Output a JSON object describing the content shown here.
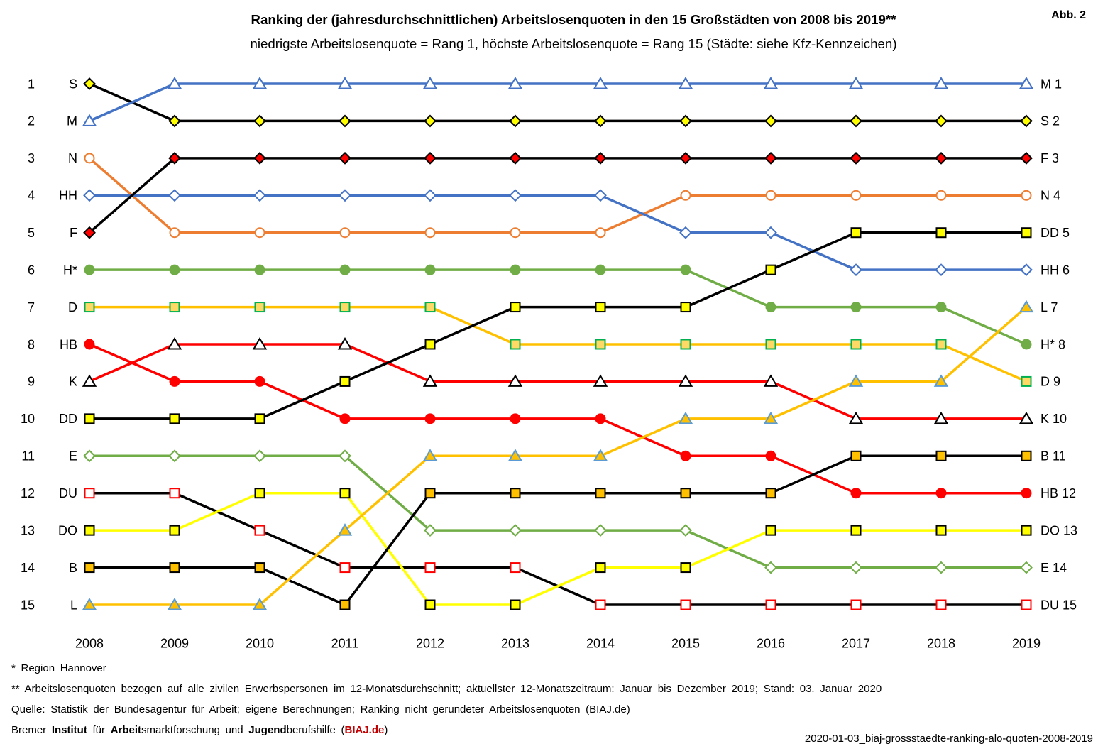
{
  "figure_label": "Abb. 2",
  "chart_data": {
    "type": "line",
    "title": "Ranking der (jahresdurchschnittlichen) Arbeitslosenquoten in den 15 Großstädten von 2008 bis 2019**",
    "subtitle": "niedrigste Arbeitslosenquote = Rang 1, höchste Arbeitslosenquote = Rang 15 (Städte: siehe Kfz-Kennzeichen)",
    "x": [
      2008,
      2009,
      2010,
      2011,
      2012,
      2013,
      2014,
      2015,
      2016,
      2017,
      2018,
      2019
    ],
    "y_ticks": [
      1,
      2,
      3,
      4,
      5,
      6,
      7,
      8,
      9,
      10,
      11,
      12,
      13,
      14,
      15
    ],
    "ylim": [
      1,
      15
    ],
    "y_axis_reversed": true,
    "grid": false,
    "series": [
      {
        "name": "S",
        "values": [
          1,
          2,
          2,
          2,
          2,
          2,
          2,
          2,
          2,
          2,
          2,
          2
        ],
        "line_color": "#000000",
        "marker": "diamond",
        "marker_fill": "#FFFF00",
        "marker_stroke": "#000000"
      },
      {
        "name": "M",
        "values": [
          2,
          1,
          1,
          1,
          1,
          1,
          1,
          1,
          1,
          1,
          1,
          1
        ],
        "line_color": "#4472C4",
        "marker": "triangle",
        "marker_fill": "#FFFFFF",
        "marker_stroke": "#4472C4"
      },
      {
        "name": "N",
        "values": [
          3,
          5,
          5,
          5,
          5,
          5,
          5,
          4,
          4,
          4,
          4,
          4
        ],
        "line_color": "#ED7D31",
        "marker": "circle",
        "marker_fill": "#FFFFFF",
        "marker_stroke": "#ED7D31"
      },
      {
        "name": "HH",
        "values": [
          4,
          4,
          4,
          4,
          4,
          4,
          4,
          5,
          5,
          6,
          6,
          6
        ],
        "line_color": "#4472C4",
        "marker": "diamond",
        "marker_fill": "#FFFFFF",
        "marker_stroke": "#4472C4"
      },
      {
        "name": "F",
        "values": [
          5,
          3,
          3,
          3,
          3,
          3,
          3,
          3,
          3,
          3,
          3,
          3
        ],
        "line_color": "#000000",
        "marker": "diamond",
        "marker_fill": "#FF0000",
        "marker_stroke": "#000000"
      },
      {
        "name": "H*",
        "values": [
          6,
          6,
          6,
          6,
          6,
          6,
          6,
          6,
          7,
          7,
          7,
          8
        ],
        "line_color": "#70AD47",
        "marker": "circle",
        "marker_fill": "#70AD47",
        "marker_stroke": "#70AD47"
      },
      {
        "name": "D",
        "values": [
          7,
          7,
          7,
          7,
          7,
          8,
          8,
          8,
          8,
          8,
          8,
          9
        ],
        "line_color": "#FFC000",
        "marker": "square",
        "marker_fill": "#FFD966",
        "marker_stroke": "#00B050"
      },
      {
        "name": "HB",
        "values": [
          8,
          9,
          9,
          10,
          10,
          10,
          10,
          11,
          11,
          12,
          12,
          12
        ],
        "line_color": "#FF0000",
        "marker": "circle",
        "marker_fill": "#FF0000",
        "marker_stroke": "#FF0000"
      },
      {
        "name": "K",
        "values": [
          9,
          8,
          8,
          8,
          9,
          9,
          9,
          9,
          9,
          10,
          10,
          10
        ],
        "line_color": "#FF0000",
        "marker": "triangle",
        "marker_fill": "#FFFFFF",
        "marker_stroke": "#000000"
      },
      {
        "name": "DD",
        "values": [
          10,
          10,
          10,
          9,
          8,
          7,
          7,
          7,
          6,
          5,
          5,
          5
        ],
        "line_color": "#000000",
        "marker": "square",
        "marker_fill": "#FFFF00",
        "marker_stroke": "#000000"
      },
      {
        "name": "E",
        "values": [
          11,
          11,
          11,
          11,
          13,
          13,
          13,
          13,
          14,
          14,
          14,
          14
        ],
        "line_color": "#70AD47",
        "marker": "diamond",
        "marker_fill": "#FFFFFF",
        "marker_stroke": "#70AD47"
      },
      {
        "name": "DU",
        "values": [
          12,
          12,
          13,
          14,
          14,
          14,
          15,
          15,
          15,
          15,
          15,
          15
        ],
        "line_color": "#000000",
        "marker": "square",
        "marker_fill": "#FFFFFF",
        "marker_stroke": "#FF0000"
      },
      {
        "name": "DO",
        "values": [
          13,
          13,
          12,
          12,
          15,
          15,
          14,
          14,
          13,
          13,
          13,
          13
        ],
        "line_color": "#FFFF00",
        "marker": "square",
        "marker_fill": "#FFFF00",
        "marker_stroke": "#000000"
      },
      {
        "name": "B",
        "values": [
          14,
          14,
          14,
          15,
          12,
          12,
          12,
          12,
          12,
          11,
          11,
          11
        ],
        "line_color": "#000000",
        "marker": "square",
        "marker_fill": "#FFC000",
        "marker_stroke": "#000000"
      },
      {
        "name": "L",
        "values": [
          15,
          15,
          15,
          13,
          11,
          11,
          11,
          10,
          10,
          9,
          9,
          7
        ],
        "line_color": "#FFC000",
        "marker": "triangle",
        "marker_fill": "#FFC000",
        "marker_stroke": "#5B9BD5"
      }
    ]
  },
  "footnotes": {
    "region": "* Region Hannover",
    "definition": "** Arbeitslosenquoten bezogen auf alle zivilen Erwerbspersonen im 12-Monatsdurchschnitt; aktuellster 12-Monatszeitraum: Januar bis Dezember 2019; Stand: 03. Januar 2020",
    "source": "Quelle: Statistik der Bundesagentur für Arbeit; eigene Berechnungen; Ranking nicht gerundeter Arbeitslosenquoten (BIAJ.de)",
    "institute": [
      "Bremer ",
      "Institut",
      " für ",
      "Arbeit",
      "smarktforschung und ",
      "Jugend",
      "berufshilfe (",
      "BIAJ.de",
      ")"
    ]
  },
  "file_name": "2020-01-03_biaj-grossstaedte-ranking-alo-quoten-2008-2019"
}
